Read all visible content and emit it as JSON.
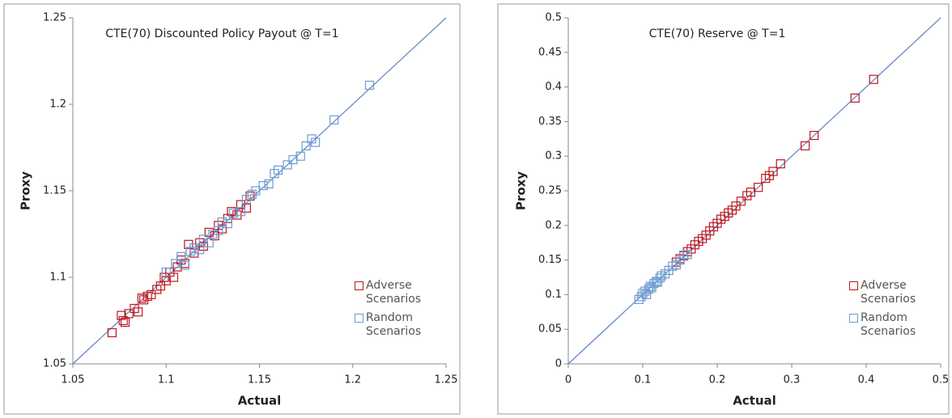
{
  "chart_data": [
    {
      "type": "scatter",
      "title": "CTE(70) Discounted Policy  Payout @ T=1",
      "x_label": "Actual",
      "y_label": "Proxy",
      "xlim": [
        1.05,
        1.25
      ],
      "ylim": [
        1.05,
        1.25
      ],
      "xticks": [
        1.05,
        1.1,
        1.15,
        1.2,
        1.25
      ],
      "yticks": [
        1.05,
        1.1,
        1.15,
        1.2,
        1.25
      ],
      "diagonal": true,
      "legend": "lower right",
      "series": [
        {
          "name": "Adverse Scenarios",
          "color": "#c0161e",
          "x": [
            1.071,
            1.076,
            1.077,
            1.078,
            1.08,
            1.083,
            1.085,
            1.087,
            1.088,
            1.09,
            1.092,
            1.095,
            1.097,
            1.099,
            1.1,
            1.102,
            1.104,
            1.106,
            1.108,
            1.11,
            1.112,
            1.115,
            1.118,
            1.12,
            1.123,
            1.126,
            1.128,
            1.13,
            1.133,
            1.135,
            1.138,
            1.14,
            1.143,
            1.145
          ],
          "values": [
            1.068,
            1.078,
            1.075,
            1.074,
            1.079,
            1.082,
            1.08,
            1.088,
            1.087,
            1.089,
            1.09,
            1.093,
            1.095,
            1.1,
            1.098,
            1.103,
            1.1,
            1.106,
            1.11,
            1.108,
            1.119,
            1.114,
            1.12,
            1.118,
            1.126,
            1.124,
            1.13,
            1.128,
            1.134,
            1.138,
            1.136,
            1.142,
            1.14,
            1.147
          ]
        },
        {
          "name": "Random Scenarios",
          "color": "#6c9bd2",
          "x": [
            1.1,
            1.105,
            1.108,
            1.11,
            1.113,
            1.115,
            1.118,
            1.12,
            1.123,
            1.125,
            1.128,
            1.13,
            1.133,
            1.136,
            1.14,
            1.143,
            1.146,
            1.148,
            1.152,
            1.155,
            1.158,
            1.16,
            1.165,
            1.168,
            1.172,
            1.175,
            1.178,
            1.18,
            1.19,
            1.209
          ],
          "values": [
            1.103,
            1.108,
            1.112,
            1.107,
            1.115,
            1.117,
            1.116,
            1.122,
            1.12,
            1.125,
            1.127,
            1.132,
            1.131,
            1.137,
            1.138,
            1.145,
            1.148,
            1.15,
            1.153,
            1.154,
            1.16,
            1.162,
            1.165,
            1.168,
            1.17,
            1.176,
            1.18,
            1.178,
            1.191,
            1.211
          ]
        }
      ]
    },
    {
      "type": "scatter",
      "title": "CTE(70) Reserve @ T=1",
      "x_label": "Actual",
      "y_label": "Proxy",
      "xlim": [
        0,
        0.5
      ],
      "ylim": [
        0,
        0.5
      ],
      "xticks": [
        0,
        0.1,
        0.2,
        0.3,
        0.4,
        0.5
      ],
      "yticks": [
        0,
        0.05,
        0.1,
        0.15,
        0.2,
        0.25,
        0.3,
        0.35,
        0.4,
        0.45,
        0.5
      ],
      "diagonal": true,
      "legend": "lower right",
      "series": [
        {
          "name": "Adverse Scenarios",
          "color": "#c0161e",
          "x": [
            0.41,
            0.385,
            0.33,
            0.318,
            0.285,
            0.275,
            0.27,
            0.265,
            0.255,
            0.245,
            0.24,
            0.232,
            0.225,
            0.22,
            0.215,
            0.21,
            0.205,
            0.2,
            0.195,
            0.19,
            0.185,
            0.18,
            0.175,
            0.17,
            0.165,
            0.16,
            0.155,
            0.15,
            0.145
          ],
          "values": [
            0.411,
            0.384,
            0.33,
            0.315,
            0.289,
            0.278,
            0.272,
            0.268,
            0.255,
            0.248,
            0.243,
            0.235,
            0.228,
            0.222,
            0.218,
            0.213,
            0.209,
            0.203,
            0.198,
            0.192,
            0.186,
            0.181,
            0.177,
            0.172,
            0.166,
            0.162,
            0.156,
            0.152,
            0.147
          ]
        },
        {
          "name": "Random Scenarios",
          "color": "#6c9bd2",
          "x": [
            0.095,
            0.098,
            0.1,
            0.103,
            0.105,
            0.108,
            0.11,
            0.112,
            0.115,
            0.118,
            0.12,
            0.123,
            0.125,
            0.13,
            0.135,
            0.14,
            0.145,
            0.15,
            0.155,
            0.16
          ],
          "values": [
            0.093,
            0.097,
            0.102,
            0.105,
            0.1,
            0.108,
            0.112,
            0.11,
            0.116,
            0.119,
            0.118,
            0.124,
            0.127,
            0.13,
            0.135,
            0.141,
            0.143,
            0.15,
            0.157,
            0.158
          ]
        }
      ]
    }
  ]
}
